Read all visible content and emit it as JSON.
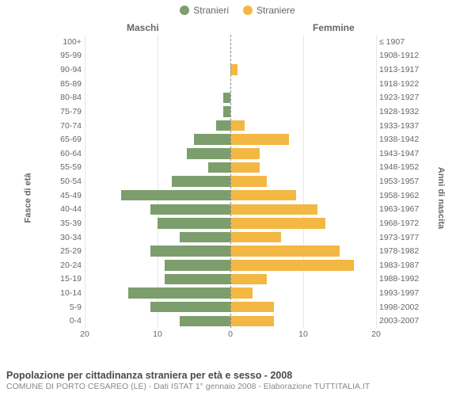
{
  "legend": {
    "male": "Stranieri",
    "female": "Straniere"
  },
  "headers": {
    "male": "Maschi",
    "female": "Femmine"
  },
  "axis": {
    "left_title": "Fasce di età",
    "right_title": "Anni di nascita"
  },
  "colors": {
    "male": "#7c9e6d",
    "female": "#f3b744",
    "background": "#ffffff",
    "grid": "#e6e6e6",
    "text": "#666666",
    "center_line": "#888888"
  },
  "chart": {
    "type": "population-pyramid",
    "xmax": 20,
    "xticks": [
      20,
      10,
      0,
      10,
      20
    ],
    "bar_height_ratio": 0.76,
    "font_size_labels": 10.5,
    "font_size_legend": 12,
    "rows": [
      {
        "age": "100+",
        "birth": "≤ 1907",
        "m": 0,
        "f": 0
      },
      {
        "age": "95-99",
        "birth": "1908-1912",
        "m": 0,
        "f": 0
      },
      {
        "age": "90-94",
        "birth": "1913-1917",
        "m": 0,
        "f": 1
      },
      {
        "age": "85-89",
        "birth": "1918-1922",
        "m": 0,
        "f": 0
      },
      {
        "age": "80-84",
        "birth": "1923-1927",
        "m": 1,
        "f": 0
      },
      {
        "age": "75-79",
        "birth": "1928-1932",
        "m": 1,
        "f": 0
      },
      {
        "age": "70-74",
        "birth": "1933-1937",
        "m": 2,
        "f": 2
      },
      {
        "age": "65-69",
        "birth": "1938-1942",
        "m": 5,
        "f": 8
      },
      {
        "age": "60-64",
        "birth": "1943-1947",
        "m": 6,
        "f": 4
      },
      {
        "age": "55-59",
        "birth": "1948-1952",
        "m": 3,
        "f": 4
      },
      {
        "age": "50-54",
        "birth": "1953-1957",
        "m": 8,
        "f": 5
      },
      {
        "age": "45-49",
        "birth": "1958-1962",
        "m": 15,
        "f": 9
      },
      {
        "age": "40-44",
        "birth": "1963-1967",
        "m": 11,
        "f": 12
      },
      {
        "age": "35-39",
        "birth": "1968-1972",
        "m": 10,
        "f": 13
      },
      {
        "age": "30-34",
        "birth": "1973-1977",
        "m": 7,
        "f": 7
      },
      {
        "age": "25-29",
        "birth": "1978-1982",
        "m": 11,
        "f": 15
      },
      {
        "age": "20-24",
        "birth": "1983-1987",
        "m": 9,
        "f": 17
      },
      {
        "age": "15-19",
        "birth": "1988-1992",
        "m": 9,
        "f": 5
      },
      {
        "age": "10-14",
        "birth": "1993-1997",
        "m": 14,
        "f": 3
      },
      {
        "age": "5-9",
        "birth": "1998-2002",
        "m": 11,
        "f": 6
      },
      {
        "age": "0-4",
        "birth": "2003-2007",
        "m": 7,
        "f": 6
      }
    ]
  },
  "footer": {
    "title": "Popolazione per cittadinanza straniera per età e sesso - 2008",
    "subtitle": "COMUNE DI PORTO CESAREO (LE) - Dati ISTAT 1° gennaio 2008 - Elaborazione TUTTITALIA.IT"
  }
}
